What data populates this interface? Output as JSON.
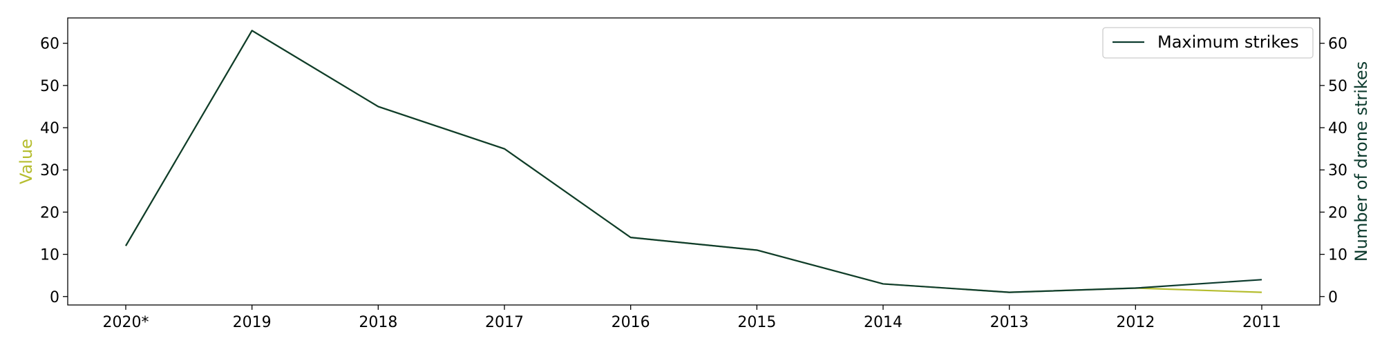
{
  "chart_data": {
    "type": "line",
    "categories": [
      "2020*",
      "2019",
      "2018",
      "2017",
      "2016",
      "2015",
      "2014",
      "2013",
      "2012",
      "2011"
    ],
    "series": [
      {
        "name": "",
        "axis": "left",
        "color": "#b5bd2e",
        "values": [
          12,
          63,
          45,
          35,
          14,
          11,
          3,
          1,
          2,
          1
        ]
      },
      {
        "name": "Maximum strikes",
        "axis": "right",
        "color": "#0d3b2e",
        "values": [
          12,
          63,
          45,
          35,
          14,
          11,
          3,
          1,
          2,
          4
        ]
      }
    ],
    "ylabel_left": "Value",
    "ylabel_right": "Number of drone strikes",
    "ylabel_left_color": "#b5bd2e",
    "ylabel_right_color": "#0d3b2e",
    "ylim": [
      -2,
      66
    ],
    "yticks": [
      0,
      10,
      20,
      30,
      40,
      50,
      60
    ],
    "legend": {
      "placement": "top-right",
      "entries": [
        "Maximum strikes"
      ]
    },
    "grid": false
  }
}
